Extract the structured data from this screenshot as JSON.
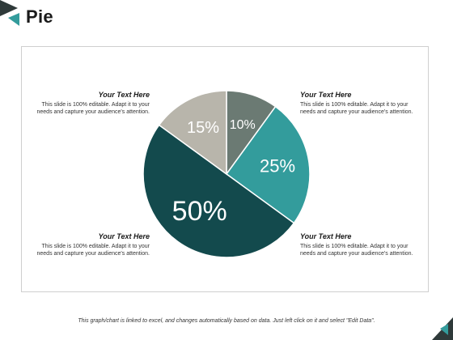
{
  "title": "Pie",
  "colors": {
    "dark_teal": "#134a4d",
    "teal": "#339c9c",
    "gray_green": "#6b7a73",
    "light_gray": "#b8b5ab"
  },
  "text_blocks": [
    {
      "heading": "Your Text Here",
      "body": "This slide is 100% editable. Adapt it to your needs and capture your audience's attention."
    },
    {
      "heading": "Your Text Here",
      "body": "This slide is 100% editable. Adapt it to your needs and capture your audience's attention."
    },
    {
      "heading": "Your Text Here",
      "body": "This slide is 100% editable. Adapt it to your needs and capture your audience's attention."
    },
    {
      "heading": "Your Text Here",
      "body": "This slide is 100% editable. Adapt it to your needs and capture your audience's attention."
    }
  ],
  "chart_data": {
    "type": "pie",
    "slices": [
      {
        "label": "10%",
        "value": 10,
        "color": "#6b7a73"
      },
      {
        "label": "25%",
        "value": 25,
        "color": "#339c9c"
      },
      {
        "label": "50%",
        "value": 50,
        "color": "#134a4d"
      },
      {
        "label": "15%",
        "value": 15,
        "color": "#b8b5ab"
      }
    ]
  },
  "footer": "This graph/chart is linked to excel, and changes automatically based on data. Just left click on it and select \"Edit Data\"."
}
